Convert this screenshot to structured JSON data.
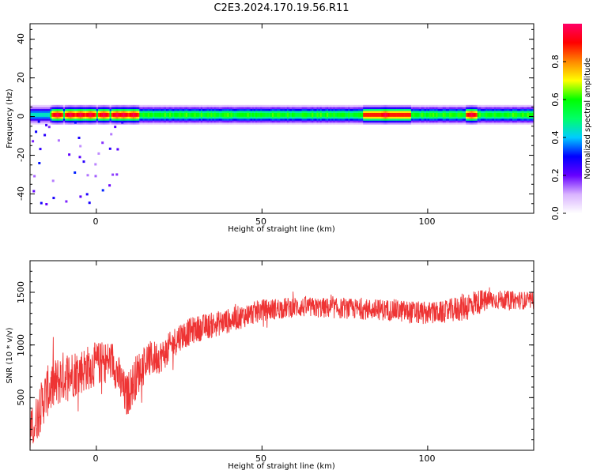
{
  "title": "C2E3.2024.170.19.56.R11",
  "chart_data": [
    {
      "type": "heatmap",
      "xlabel": "Height of straight line (km)",
      "ylabel": "Frequency (Hz)",
      "xlim": [
        -20,
        132
      ],
      "ylim": [
        -50,
        48
      ],
      "x_ticks": [
        "0",
        "50",
        "100"
      ],
      "y_ticks": [
        "-40",
        "-20",
        "0",
        "20",
        "40"
      ],
      "band_center_hz": 0,
      "band_halfwidth_hz": 3,
      "hotspots_km": [
        -12,
        -8,
        -5,
        -2,
        2,
        6,
        8,
        11,
        87,
        113
      ],
      "colorbar": {
        "label": "Normalized spectral amplitude",
        "range": [
          0,
          1
        ],
        "ticks": [
          "0.0",
          "0.2",
          "0.4",
          "0.6",
          "0.8"
        ],
        "colormap": [
          "#ffffff",
          "#d9b3ff",
          "#6600ff",
          "#0000ff",
          "#00ccff",
          "#00ff66",
          "#00ff00",
          "#ffff00",
          "#ff8800",
          "#ff0000",
          "#ff0066"
        ]
      }
    },
    {
      "type": "line",
      "xlabel": "Height of straight line (km)",
      "ylabel": "SNR (10 * v/v)",
      "xlim": [
        -20,
        132
      ],
      "ylim": [
        0,
        1800
      ],
      "x_ticks": [
        "0",
        "50",
        "100"
      ],
      "y_ticks": [
        "500",
        "1000",
        "1500"
      ],
      "color": "#ee3333",
      "x": [
        -20,
        -15,
        -10,
        -5,
        0,
        5,
        9,
        12,
        15,
        20,
        25,
        30,
        40,
        50,
        60,
        70,
        80,
        90,
        98,
        105,
        112,
        114,
        120,
        132
      ],
      "y": [
        150,
        550,
        700,
        750,
        820,
        850,
        500,
        700,
        850,
        900,
        1080,
        1150,
        1230,
        1330,
        1360,
        1350,
        1340,
        1330,
        1300,
        1310,
        1370,
        1400,
        1430,
        1420
      ],
      "spread": [
        300,
        350,
        350,
        320,
        300,
        280,
        300,
        300,
        260,
        220,
        200,
        180,
        170,
        150,
        140,
        140,
        140,
        150,
        160,
        150,
        200,
        180,
        130,
        120
      ]
    }
  ]
}
